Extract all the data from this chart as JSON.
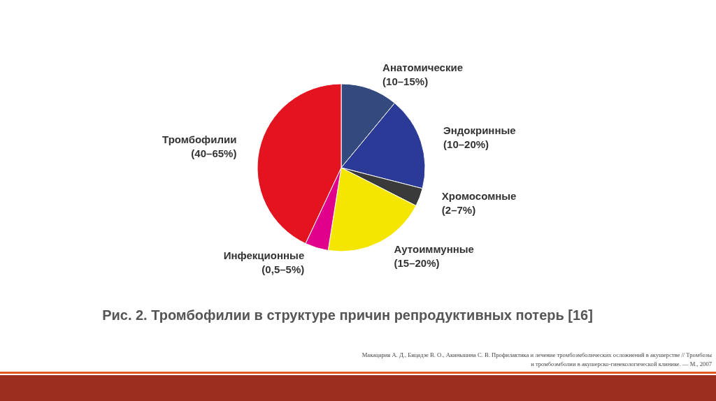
{
  "chart_data": {
    "type": "pie",
    "title": "Рис. 2. Тромбофилии в структуре причин репродуктивных потерь [16]",
    "categories": [
      "Анатомические (10–15%)",
      "Эндокринные (10–20%)",
      "Хромосомные (2–7%)",
      "Аутоиммунные (15–20%)",
      "Инфекционные (0,5–5%)",
      "Тромбофилии (40–65%)"
    ],
    "values": [
      11,
      18,
      3.5,
      20,
      4.5,
      43
    ],
    "colors": [
      "#34497e",
      "#2a3a96",
      "#3a3a3a",
      "#f4e600",
      "#e0008a",
      "#e3141f"
    ],
    "annotations": [
      "Макацария А. Д., Бицадзе В. О., Акиньшина С. В. Профилактика и лечение тромбоэмболических осложнений в акушерстве // Тромбозы и тромбоэмболии в акушерско-гинекологической клинике. — М., 2007"
    ],
    "legend": false
  }
}
